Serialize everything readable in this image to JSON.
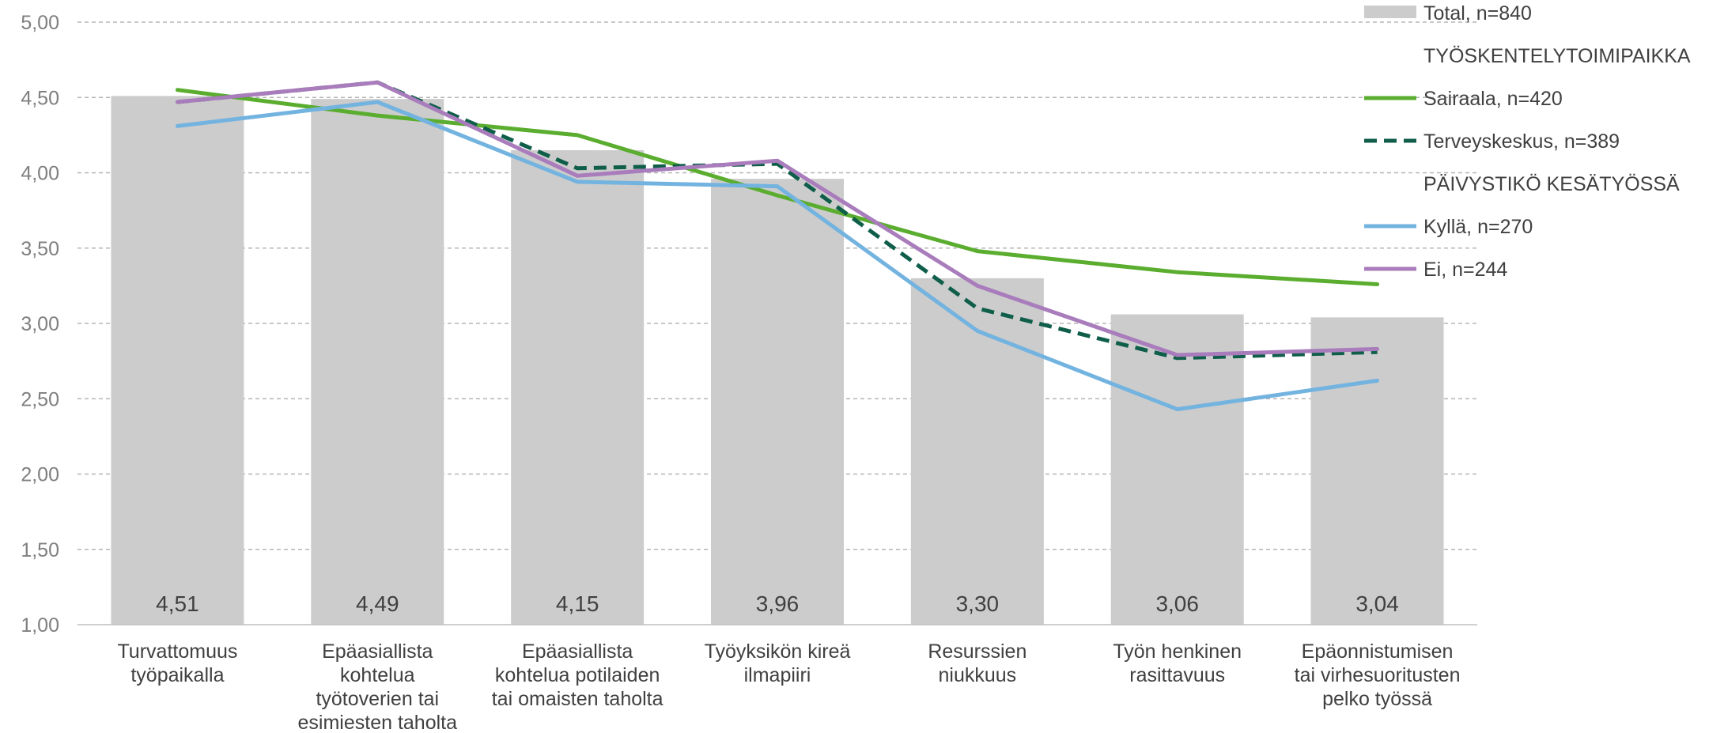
{
  "chart_data": {
    "type": "bar",
    "categories": [
      [
        "Turvattomuus",
        "työpaikalla"
      ],
      [
        "Epäasiallista",
        "kohtelua",
        "työtoverien tai",
        "esimiesten taholta"
      ],
      [
        "Epäasiallista",
        "kohtelua potilaiden",
        "tai omaisten taholta"
      ],
      [
        "Työyksikön kireä",
        "ilmapiiri"
      ],
      [
        "Resurssien",
        "niukkuus"
      ],
      [
        "Työn henkinen",
        "rasittavuus"
      ],
      [
        "Epäonnistumisen",
        "tai virhesuoritusten",
        "pelko työssä"
      ]
    ],
    "bar_series": {
      "name": "Total, n=840",
      "color": "#cccccc",
      "values": [
        4.51,
        4.49,
        4.15,
        3.96,
        3.3,
        3.06,
        3.04
      ],
      "labels": [
        "4,51",
        "4,49",
        "4,15",
        "3,96",
        "3,30",
        "3,06",
        "3,04"
      ]
    },
    "line_series": [
      {
        "name": "Sairaala, n=420",
        "color": "#5aad2e",
        "dash": "solid",
        "values": [
          4.55,
          4.38,
          4.25,
          3.85,
          3.48,
          3.34,
          3.26
        ]
      },
      {
        "name": "Terveyskeskus, n=389",
        "color": "#0f5e4a",
        "dash": "dashed",
        "values": [
          4.47,
          4.6,
          4.03,
          4.06,
          3.1,
          2.77,
          2.81
        ]
      },
      {
        "name": "Kyllä, n=270",
        "color": "#73b3e0",
        "dash": "solid",
        "values": [
          4.31,
          4.47,
          3.94,
          3.91,
          2.95,
          2.43,
          2.62
        ]
      },
      {
        "name": "Ei, n=244",
        "color": "#a97cbc",
        "dash": "solid",
        "values": [
          4.47,
          4.6,
          3.98,
          4.08,
          3.25,
          2.79,
          2.83
        ]
      }
    ],
    "ylim": [
      1.0,
      5.0
    ],
    "yticks": [
      "1,00",
      "1,50",
      "2,00",
      "2,50",
      "3,00",
      "3,50",
      "4,00",
      "4,50",
      "5,00"
    ],
    "grid": true,
    "legend_position": "top-right",
    "legend": [
      {
        "kind": "bar",
        "label": "Total, n=840",
        "color": "#cccccc"
      },
      {
        "kind": "heading",
        "label": "TYÖSKENTELYTOIMIPAIKKA"
      },
      {
        "kind": "line",
        "label": "Sairaala, n=420",
        "color": "#5aad2e",
        "dash": "solid"
      },
      {
        "kind": "line",
        "label": "Terveyskeskus, n=389",
        "color": "#0f5e4a",
        "dash": "dashed"
      },
      {
        "kind": "heading",
        "label": "PÄIVYSTIKÖ KESÄTYÖSSÄ"
      },
      {
        "kind": "line",
        "label": "Kyllä, n=270",
        "color": "#73b3e0",
        "dash": "solid"
      },
      {
        "kind": "line",
        "label": "Ei, n=244",
        "color": "#a97cbc",
        "dash": "solid"
      }
    ]
  }
}
